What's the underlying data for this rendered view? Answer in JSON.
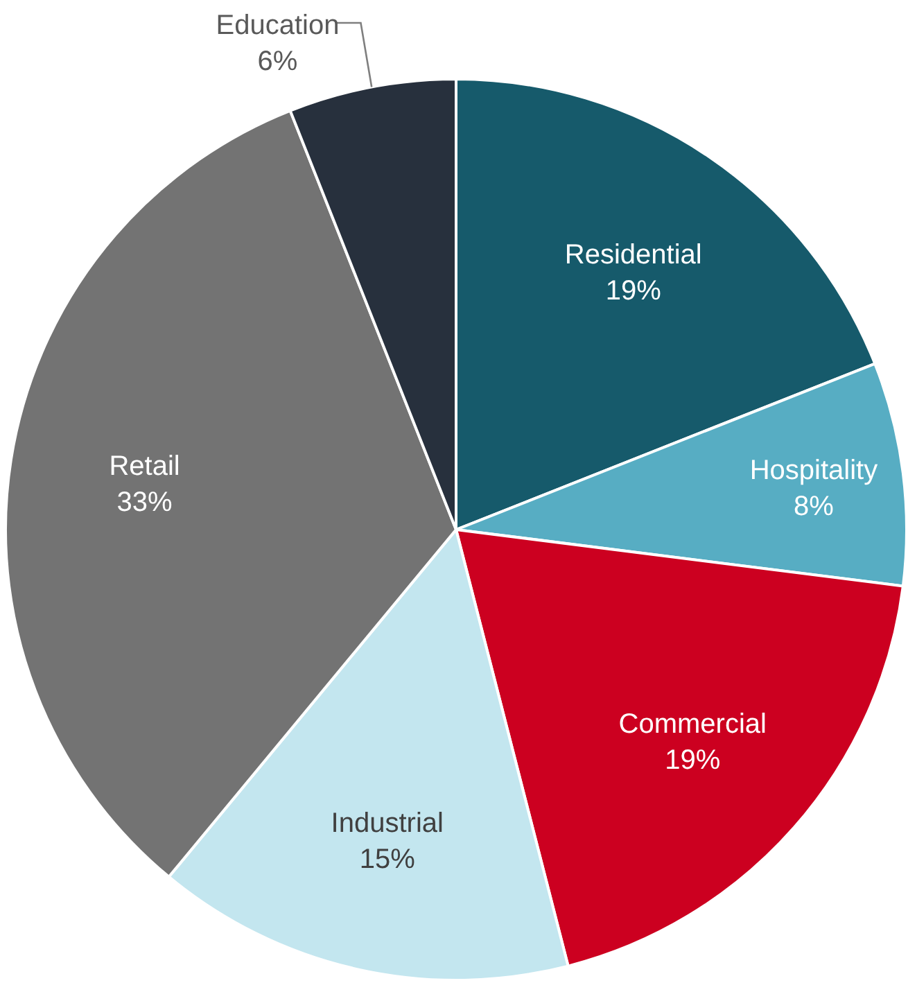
{
  "chart_data": {
    "type": "pie",
    "categories": [
      "Residential",
      "Hospitality",
      "Commercial",
      "Industrial",
      "Retail",
      "Education"
    ],
    "values": [
      19,
      8,
      19,
      15,
      33,
      6
    ],
    "colors": [
      "#165a6b",
      "#57adc3",
      "#cc0020",
      "#c3e6ef",
      "#737373",
      "#27303d"
    ],
    "value_labels": [
      "19%",
      "8%",
      "19%",
      "15%",
      "33%",
      "6%"
    ]
  }
}
